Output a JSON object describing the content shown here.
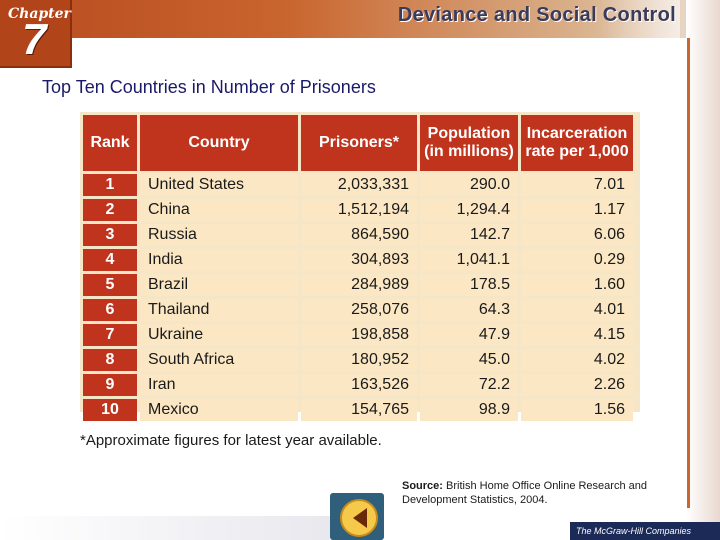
{
  "header": {
    "chapter_word": "Chapter",
    "chapter_number": "7",
    "title": "Deviance and Social Control"
  },
  "page": {
    "title": "Top Ten Countries in Number of Prisoners"
  },
  "table": {
    "headers": {
      "rank": "Rank",
      "country": "Country",
      "prisoners": "Prisoners*",
      "population_line1": "Population",
      "population_line2": "(in millions)",
      "rate_line1": "Incarceration",
      "rate_line2": "rate per 1,000"
    },
    "rows": [
      {
        "rank": "1",
        "country": "United States",
        "prisoners": "2,033,331",
        "population": "290.0",
        "rate": "7.01"
      },
      {
        "rank": "2",
        "country": "China",
        "prisoners": "1,512,194",
        "population": "1,294.4",
        "rate": "1.17"
      },
      {
        "rank": "3",
        "country": "Russia",
        "prisoners": "864,590",
        "population": "142.7",
        "rate": "6.06"
      },
      {
        "rank": "4",
        "country": "India",
        "prisoners": "304,893",
        "population": "1,041.1",
        "rate": "0.29"
      },
      {
        "rank": "5",
        "country": "Brazil",
        "prisoners": "284,989",
        "population": "178.5",
        "rate": "1.60"
      },
      {
        "rank": "6",
        "country": "Thailand",
        "prisoners": "258,076",
        "population": "64.3",
        "rate": "4.01"
      },
      {
        "rank": "7",
        "country": "Ukraine",
        "prisoners": "198,858",
        "population": "47.9",
        "rate": "4.15"
      },
      {
        "rank": "8",
        "country": "South Africa",
        "prisoners": "180,952",
        "population": "45.0",
        "rate": "4.02"
      },
      {
        "rank": "9",
        "country": "Iran",
        "prisoners": "163,526",
        "population": "72.2",
        "rate": "2.26"
      },
      {
        "rank": "10",
        "country": "Mexico",
        "prisoners": "154,765",
        "population": "98.9",
        "rate": "1.56"
      }
    ]
  },
  "footnote": "*Approximate figures for latest year available.",
  "source": {
    "label": "Source:",
    "text": "British Home Office Online Research and Development Statistics, 2004."
  },
  "navigation": {
    "back_icon": "back-arrow-icon"
  },
  "publisher": "The McGraw-Hill Companies",
  "colors": {
    "header_accent": "#c0341d",
    "cell_background": "#fbe7c3",
    "title_text": "#1a1a6a"
  }
}
